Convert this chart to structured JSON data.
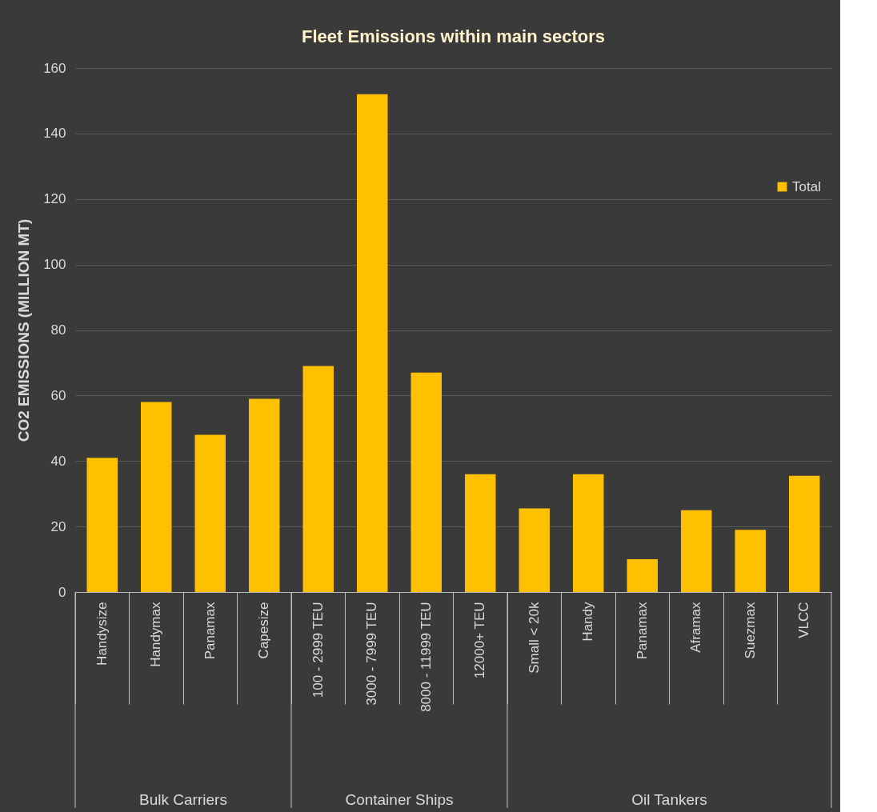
{
  "chart_data": {
    "type": "bar",
    "title": "Fleet Emissions within main sectors",
    "ylabel": "CO2 EMISSIONS (MILLION MT)",
    "categories": [
      "Handysize",
      "Handymax",
      "Panamax",
      "Capesize",
      "100 - 2999 TEU",
      "3000 - 7999 TEU",
      "8000 - 11999 TEU",
      "12000+ TEU",
      "Small < 20k",
      "Handy",
      "Panamax",
      "Aframax",
      "Suezmax",
      "VLCC"
    ],
    "series": [
      {
        "name": "Total",
        "color": "#ffc000",
        "values": [
          41,
          58,
          48,
          59,
          69,
          152,
          67,
          36,
          25.5,
          36,
          10,
          25,
          19,
          35.5
        ]
      }
    ],
    "annotations": [
      "Bulk Carriers",
      "Container Ships",
      "Oil Tankers"
    ],
    "ylim": [
      0,
      160
    ],
    "yticks": [
      0,
      20,
      40,
      60,
      80,
      100,
      120,
      140,
      160
    ],
    "grid": "y",
    "legend": "top right"
  }
}
